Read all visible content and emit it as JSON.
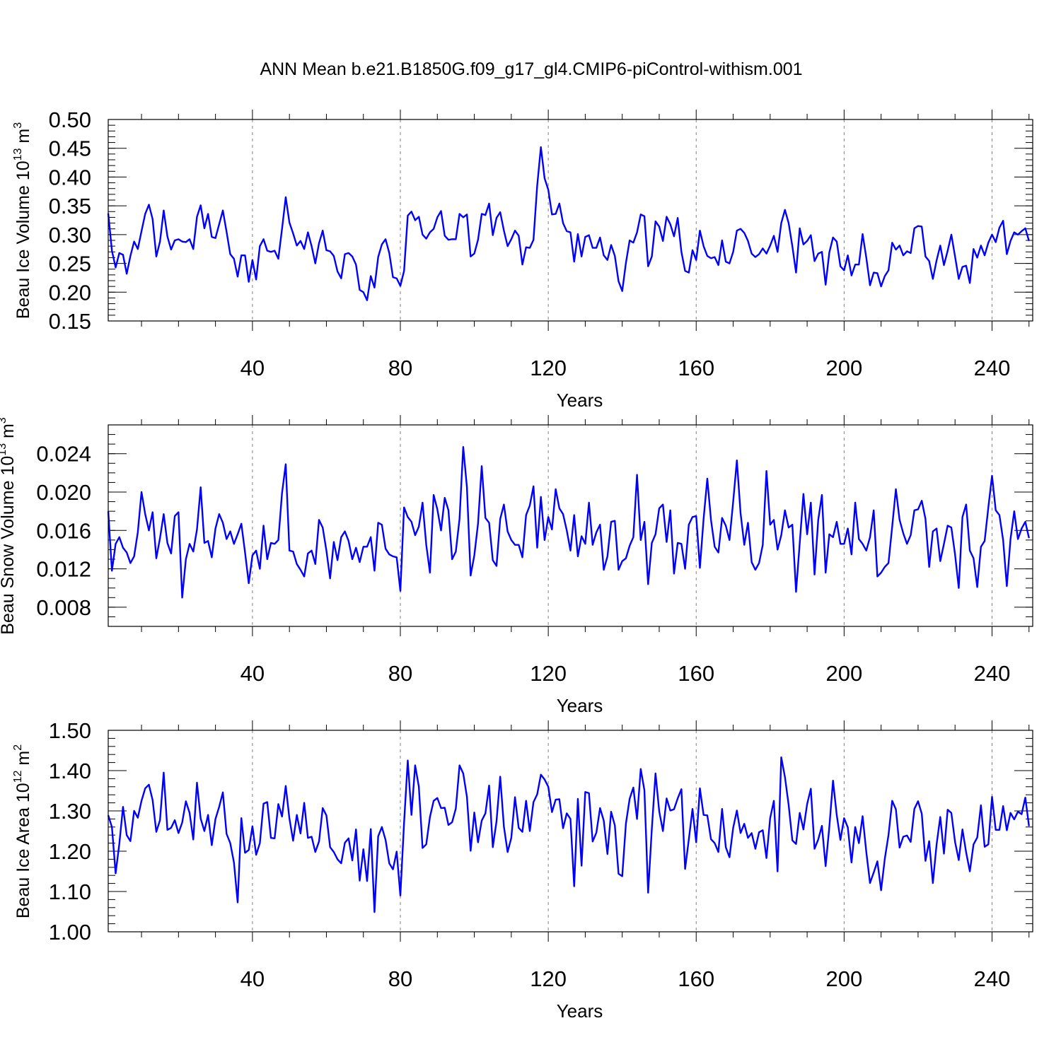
{
  "title": "ANN Mean b.e21.B1850G.f09_g17_gl4.CMIP6-piControl-withism.001",
  "line_color": "#0000ff",
  "grid_color": "#808080",
  "chart_data": [
    {
      "type": "line",
      "name": "ice-volume",
      "ylabel": {
        "text": "Beau Ice Volume 10",
        "exp": "13",
        "unit": " m",
        "unit_exp": "3"
      },
      "xlabel": "Years",
      "xlim": [
        1,
        251
      ],
      "ylim": [
        0.15,
        0.5
      ],
      "xticks": [
        40,
        80,
        120,
        160,
        200,
        240
      ],
      "yticks": [
        0.15,
        0.2,
        0.25,
        0.3,
        0.35,
        0.4,
        0.45,
        0.5
      ],
      "ytick_labels": [
        "0.15",
        "0.20",
        "0.25",
        "0.30",
        "0.35",
        "0.40",
        "0.45",
        "0.50"
      ],
      "yminor_step": 0.01,
      "x_start": 1,
      "values": [
        0.337,
        0.272,
        0.243,
        0.268,
        0.265,
        0.232,
        0.263,
        0.288,
        0.275,
        0.306,
        0.336,
        0.352,
        0.327,
        0.262,
        0.288,
        0.342,
        0.297,
        0.274,
        0.29,
        0.292,
        0.288,
        0.287,
        0.292,
        0.275,
        0.331,
        0.351,
        0.311,
        0.336,
        0.296,
        0.294,
        0.318,
        0.342,
        0.305,
        0.266,
        0.258,
        0.227,
        0.264,
        0.264,
        0.218,
        0.256,
        0.222,
        0.28,
        0.292,
        0.272,
        0.27,
        0.272,
        0.258,
        0.31,
        0.365,
        0.321,
        0.302,
        0.281,
        0.289,
        0.275,
        0.304,
        0.28,
        0.25,
        0.285,
        0.307,
        0.273,
        0.271,
        0.263,
        0.236,
        0.224,
        0.266,
        0.268,
        0.262,
        0.248,
        0.204,
        0.2,
        0.186,
        0.228,
        0.208,
        0.261,
        0.283,
        0.292,
        0.268,
        0.226,
        0.224,
        0.211,
        0.237,
        0.333,
        0.34,
        0.325,
        0.331,
        0.3,
        0.293,
        0.304,
        0.31,
        0.33,
        0.341,
        0.298,
        0.291,
        0.292,
        0.292,
        0.336,
        0.33,
        0.335,
        0.262,
        0.267,
        0.291,
        0.336,
        0.334,
        0.354,
        0.299,
        0.329,
        0.339,
        0.307,
        0.28,
        0.292,
        0.307,
        0.298,
        0.248,
        0.278,
        0.277,
        0.291,
        0.385,
        0.452,
        0.398,
        0.378,
        0.335,
        0.336,
        0.354,
        0.32,
        0.306,
        0.304,
        0.253,
        0.301,
        0.262,
        0.296,
        0.299,
        0.277,
        0.277,
        0.295,
        0.264,
        0.256,
        0.282,
        0.263,
        0.219,
        0.202,
        0.251,
        0.29,
        0.286,
        0.304,
        0.335,
        0.332,
        0.245,
        0.262,
        0.323,
        0.314,
        0.289,
        0.331,
        0.318,
        0.297,
        0.329,
        0.27,
        0.237,
        0.234,
        0.273,
        0.256,
        0.307,
        0.28,
        0.263,
        0.259,
        0.261,
        0.247,
        0.29,
        0.253,
        0.25,
        0.27,
        0.307,
        0.31,
        0.303,
        0.289,
        0.267,
        0.261,
        0.266,
        0.276,
        0.267,
        0.281,
        0.298,
        0.27,
        0.32,
        0.343,
        0.32,
        0.28,
        0.234,
        0.311,
        0.283,
        0.289,
        0.299,
        0.254,
        0.267,
        0.27,
        0.213,
        0.269,
        0.295,
        0.288,
        0.245,
        0.238,
        0.264,
        0.229,
        0.248,
        0.248,
        0.301,
        0.26,
        0.212,
        0.234,
        0.233,
        0.21,
        0.228,
        0.238,
        0.286,
        0.274,
        0.281,
        0.264,
        0.271,
        0.268,
        0.311,
        0.315,
        0.314,
        0.262,
        0.254,
        0.223,
        0.255,
        0.281,
        0.247,
        0.272,
        0.3,
        0.262,
        0.223,
        0.244,
        0.246,
        0.216,
        0.275,
        0.26,
        0.281,
        0.264,
        0.286,
        0.3,
        0.287,
        0.312,
        0.324,
        0.266,
        0.289,
        0.304,
        0.3,
        0.306,
        0.311,
        0.289
      ]
    },
    {
      "type": "line",
      "name": "snow-volume",
      "ylabel": {
        "text": "Beau Snow Volume 10",
        "exp": "13",
        "unit": " m",
        "unit_exp": "3"
      },
      "xlabel": "Years",
      "xlim": [
        1,
        251
      ],
      "ylim": [
        0.006,
        0.027
      ],
      "xticks": [
        40,
        80,
        120,
        160,
        200,
        240
      ],
      "yticks": [
        0.008,
        0.012,
        0.016,
        0.02,
        0.024
      ],
      "ytick_labels": [
        "0.008",
        "0.012",
        "0.016",
        "0.020",
        "0.024"
      ],
      "yminor_step": 0.001,
      "x_start": 1,
      "values": [
        0.018,
        0.0118,
        0.0146,
        0.0153,
        0.0142,
        0.0137,
        0.0126,
        0.0133,
        0.0158,
        0.02,
        0.0177,
        0.016,
        0.0179,
        0.0131,
        0.0152,
        0.0177,
        0.0147,
        0.0136,
        0.0175,
        0.0179,
        0.009,
        0.013,
        0.0146,
        0.0138,
        0.0161,
        0.0205,
        0.0147,
        0.0149,
        0.0132,
        0.0162,
        0.0177,
        0.0168,
        0.0151,
        0.0159,
        0.0146,
        0.0156,
        0.0167,
        0.0137,
        0.0105,
        0.0134,
        0.0139,
        0.012,
        0.0165,
        0.013,
        0.0147,
        0.0146,
        0.015,
        0.0199,
        0.0229,
        0.0139,
        0.0138,
        0.0125,
        0.0119,
        0.0112,
        0.0136,
        0.0139,
        0.0125,
        0.0171,
        0.0163,
        0.0139,
        0.011,
        0.0148,
        0.0129,
        0.0153,
        0.0159,
        0.0149,
        0.013,
        0.0142,
        0.0127,
        0.0143,
        0.0143,
        0.0153,
        0.0118,
        0.0168,
        0.0166,
        0.0141,
        0.0135,
        0.0133,
        0.0132,
        0.0097,
        0.0184,
        0.0174,
        0.0169,
        0.0155,
        0.0164,
        0.0189,
        0.0145,
        0.0116,
        0.0197,
        0.0182,
        0.016,
        0.0194,
        0.0181,
        0.013,
        0.0138,
        0.0172,
        0.0247,
        0.0205,
        0.0113,
        0.0134,
        0.0167,
        0.0227,
        0.0173,
        0.0168,
        0.0129,
        0.0123,
        0.0172,
        0.0187,
        0.0159,
        0.015,
        0.0145,
        0.0145,
        0.0132,
        0.0176,
        0.0186,
        0.0206,
        0.0142,
        0.0195,
        0.015,
        0.0174,
        0.0161,
        0.0203,
        0.0183,
        0.0177,
        0.016,
        0.0139,
        0.0176,
        0.0133,
        0.0154,
        0.0146,
        0.0189,
        0.0145,
        0.0158,
        0.0166,
        0.0119,
        0.0133,
        0.0169,
        0.017,
        0.0119,
        0.0128,
        0.0131,
        0.0144,
        0.0153,
        0.0218,
        0.015,
        0.0169,
        0.0104,
        0.0147,
        0.0156,
        0.0183,
        0.0187,
        0.0148,
        0.0181,
        0.0115,
        0.0147,
        0.0146,
        0.012,
        0.0166,
        0.0174,
        0.0175,
        0.0121,
        0.0172,
        0.0214,
        0.0171,
        0.0143,
        0.0137,
        0.0173,
        0.0165,
        0.015,
        0.019,
        0.0233,
        0.0178,
        0.0145,
        0.0168,
        0.0127,
        0.0119,
        0.0126,
        0.0145,
        0.0222,
        0.0166,
        0.0171,
        0.014,
        0.0155,
        0.0181,
        0.0163,
        0.0166,
        0.0096,
        0.0147,
        0.0198,
        0.0156,
        0.0189,
        0.0114,
        0.0171,
        0.0197,
        0.0116,
        0.0156,
        0.0153,
        0.0169,
        0.0146,
        0.0146,
        0.0162,
        0.0135,
        0.0189,
        0.0151,
        0.0146,
        0.0139,
        0.0153,
        0.0181,
        0.0112,
        0.0116,
        0.0122,
        0.0126,
        0.0164,
        0.0203,
        0.0171,
        0.0157,
        0.0146,
        0.0155,
        0.0181,
        0.0182,
        0.0191,
        0.0172,
        0.0122,
        0.0159,
        0.0162,
        0.0128,
        0.0146,
        0.0165,
        0.0163,
        0.0135,
        0.01,
        0.0174,
        0.0187,
        0.0139,
        0.0131,
        0.0101,
        0.0143,
        0.0149,
        0.0184,
        0.0217,
        0.0181,
        0.0176,
        0.015,
        0.0102,
        0.0151,
        0.018,
        0.0151,
        0.0162,
        0.0169,
        0.0152
      ]
    },
    {
      "type": "line",
      "name": "ice-area",
      "ylabel": {
        "text": "Beau Ice Area 10",
        "exp": "12",
        "unit": " m",
        "unit_exp": "2"
      },
      "xlabel": "Years",
      "xlim": [
        1,
        251
      ],
      "ylim": [
        1.0,
        1.5
      ],
      "xticks": [
        40,
        80,
        120,
        160,
        200,
        240
      ],
      "yticks": [
        1.0,
        1.1,
        1.2,
        1.3,
        1.4,
        1.5
      ],
      "ytick_labels": [
        "1.00",
        "1.10",
        "1.20",
        "1.30",
        "1.40",
        "1.50"
      ],
      "yminor_step": 0.02,
      "x_start": 1,
      "values": [
        1.289,
        1.26,
        1.145,
        1.218,
        1.31,
        1.24,
        1.225,
        1.3,
        1.283,
        1.325,
        1.356,
        1.365,
        1.327,
        1.248,
        1.277,
        1.395,
        1.253,
        1.258,
        1.277,
        1.245,
        1.271,
        1.324,
        1.295,
        1.229,
        1.37,
        1.281,
        1.25,
        1.29,
        1.215,
        1.28,
        1.31,
        1.346,
        1.243,
        1.22,
        1.172,
        1.073,
        1.282,
        1.196,
        1.203,
        1.262,
        1.191,
        1.22,
        1.318,
        1.322,
        1.233,
        1.232,
        1.317,
        1.286,
        1.362,
        1.281,
        1.226,
        1.29,
        1.244,
        1.32,
        1.233,
        1.236,
        1.198,
        1.224,
        1.307,
        1.289,
        1.21,
        1.198,
        1.18,
        1.17,
        1.221,
        1.232,
        1.177,
        1.254,
        1.127,
        1.205,
        1.126,
        1.255,
        1.049,
        1.237,
        1.26,
        1.228,
        1.17,
        1.155,
        1.199,
        1.09,
        1.27,
        1.425,
        1.29,
        1.413,
        1.36,
        1.208,
        1.217,
        1.285,
        1.325,
        1.332,
        1.307,
        1.308,
        1.265,
        1.272,
        1.306,
        1.413,
        1.393,
        1.335,
        1.201,
        1.296,
        1.222,
        1.276,
        1.294,
        1.363,
        1.21,
        1.274,
        1.385,
        1.261,
        1.198,
        1.233,
        1.334,
        1.258,
        1.248,
        1.325,
        1.25,
        1.322,
        1.341,
        1.39,
        1.378,
        1.36,
        1.297,
        1.328,
        1.329,
        1.257,
        1.294,
        1.28,
        1.113,
        1.33,
        1.164,
        1.347,
        1.344,
        1.224,
        1.246,
        1.307,
        1.276,
        1.193,
        1.298,
        1.264,
        1.144,
        1.138,
        1.269,
        1.33,
        1.358,
        1.28,
        1.404,
        1.351,
        1.097,
        1.255,
        1.393,
        1.299,
        1.25,
        1.331,
        1.301,
        1.304,
        1.331,
        1.354,
        1.156,
        1.229,
        1.305,
        1.222,
        1.356,
        1.29,
        1.289,
        1.23,
        1.22,
        1.198,
        1.305,
        1.21,
        1.185,
        1.258,
        1.301,
        1.245,
        1.268,
        1.233,
        1.245,
        1.206,
        1.247,
        1.252,
        1.183,
        1.282,
        1.325,
        1.15,
        1.433,
        1.384,
        1.315,
        1.227,
        1.218,
        1.295,
        1.254,
        1.317,
        1.355,
        1.206,
        1.229,
        1.263,
        1.163,
        1.26,
        1.375,
        1.29,
        1.228,
        1.282,
        1.259,
        1.172,
        1.26,
        1.22,
        1.287,
        1.198,
        1.121,
        1.147,
        1.175,
        1.103,
        1.181,
        1.24,
        1.325,
        1.304,
        1.209,
        1.236,
        1.239,
        1.223,
        1.305,
        1.324,
        1.293,
        1.176,
        1.225,
        1.121,
        1.216,
        1.285,
        1.194,
        1.303,
        1.295,
        1.223,
        1.178,
        1.254,
        1.197,
        1.15,
        1.217,
        1.234,
        1.314,
        1.211,
        1.217,
        1.335,
        1.253,
        1.253,
        1.312,
        1.252,
        1.295,
        1.279,
        1.298,
        1.292,
        1.333,
        1.262
      ]
    }
  ]
}
